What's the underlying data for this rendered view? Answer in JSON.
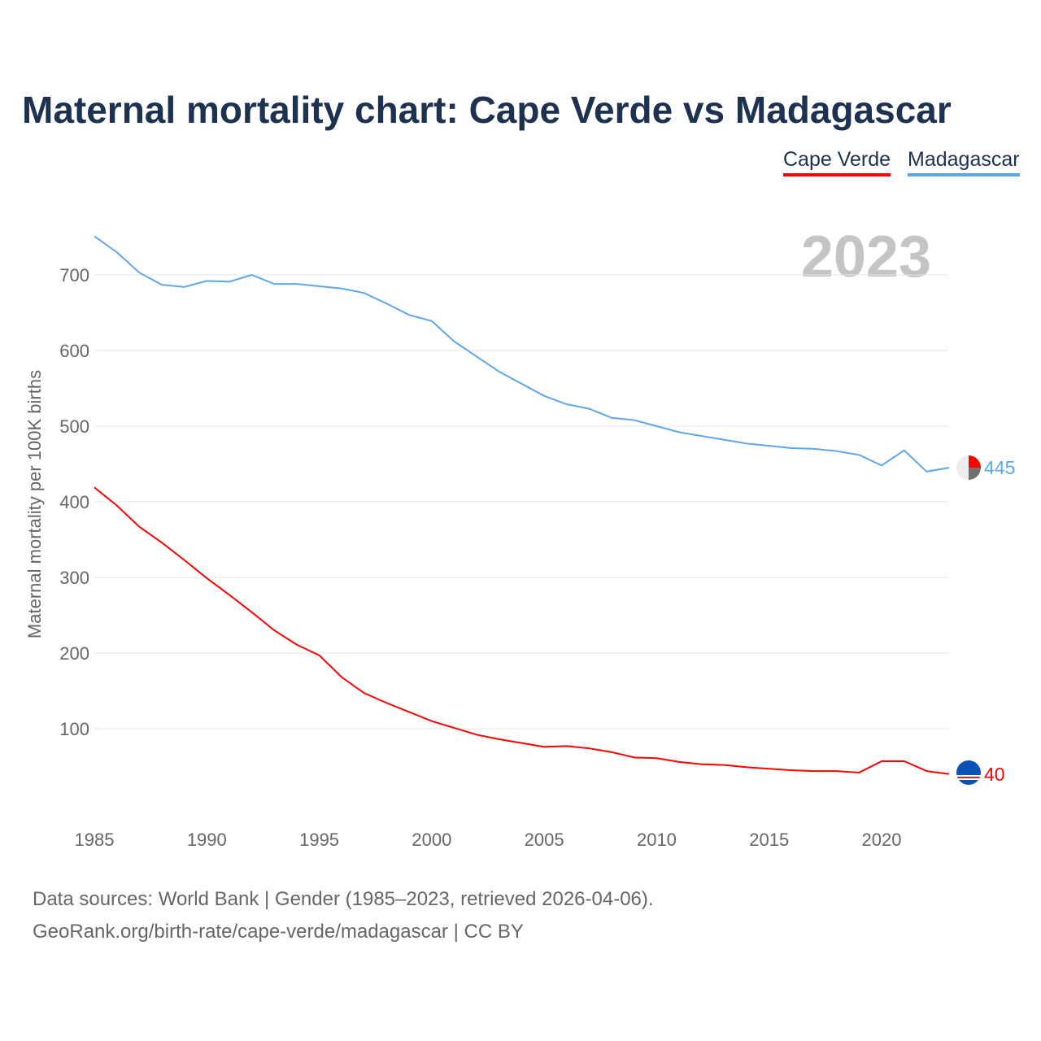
{
  "title": "Maternal mortality chart: Cape Verde vs Madagascar",
  "year_label": "2023",
  "footer": {
    "line1": "Data sources: World Bank | Gender (1985–2023, retrieved 2026-04-06).",
    "line2": "GeoRank.org/birth-rate/cape-verde/madagascar | CC BY"
  },
  "chart_data": {
    "type": "line",
    "title": "Maternal mortality chart: Cape Verde vs Madagascar",
    "xlabel": "",
    "ylabel": "Maternal mortality per 100K births",
    "xlim": [
      1985,
      2023
    ],
    "ylim": [
      0,
      760
    ],
    "grid": true,
    "legend": "top-right",
    "x_ticks": [
      1985,
      1990,
      1995,
      2000,
      2005,
      2010,
      2015,
      2020
    ],
    "y_ticks": [
      100,
      200,
      300,
      400,
      500,
      600,
      700
    ],
    "x": [
      1985,
      1986,
      1987,
      1988,
      1989,
      1990,
      1991,
      1992,
      1993,
      1994,
      1995,
      1996,
      1997,
      1998,
      1999,
      2000,
      2001,
      2002,
      2003,
      2004,
      2005,
      2006,
      2007,
      2008,
      2009,
      2010,
      2011,
      2012,
      2013,
      2014,
      2015,
      2016,
      2017,
      2018,
      2019,
      2020,
      2021,
      2022,
      2023
    ],
    "series": [
      {
        "name": "Cape Verde",
        "color": "#ff0000",
        "end_label": "40",
        "values": [
          419,
          395,
          367,
          346,
          323,
          299,
          277,
          254,
          230,
          211,
          197,
          168,
          147,
          134,
          122,
          110,
          101,
          92,
          86,
          81,
          76,
          77,
          74,
          69,
          62,
          61,
          56,
          53,
          52,
          49,
          47,
          45,
          44,
          44,
          42,
          57,
          57,
          44,
          40
        ]
      },
      {
        "name": "Madagascar",
        "color": "#5ea6ea",
        "end_label": "445",
        "values": [
          751,
          730,
          703,
          687,
          684,
          692,
          691,
          700,
          688,
          688,
          685,
          682,
          676,
          662,
          647,
          639,
          612,
          592,
          572,
          556,
          540,
          529,
          523,
          511,
          508,
          500,
          492,
          487,
          482,
          477,
          474,
          471,
          470,
          467,
          462,
          448,
          468,
          440,
          445
        ]
      }
    ]
  }
}
